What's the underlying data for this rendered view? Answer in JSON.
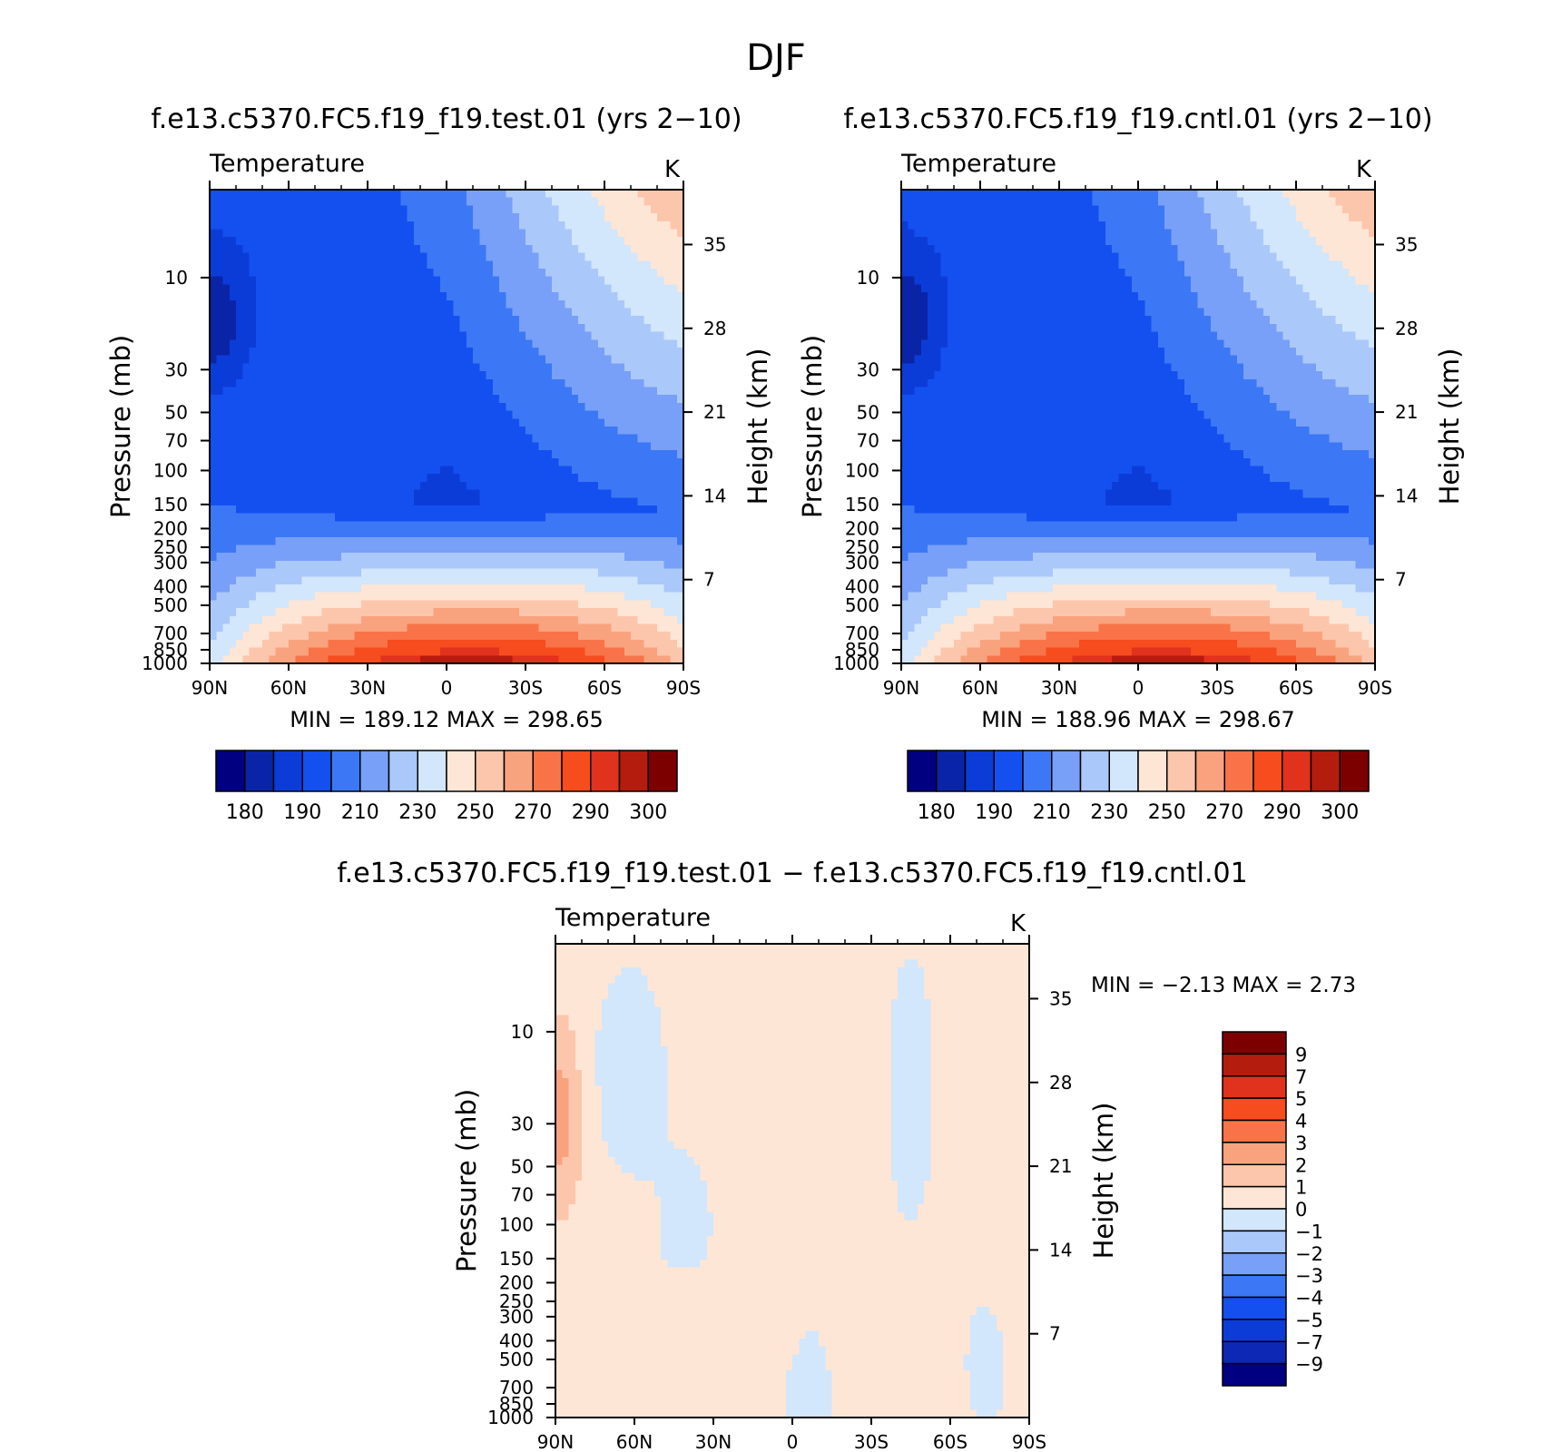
{
  "season_title": "DJF",
  "colors": {
    "abs_palette": [
      "#000080",
      "#0a24a8",
      "#0c3cd8",
      "#1450f0",
      "#3c78f5",
      "#78a0f8",
      "#aac8fa",
      "#d2e6fc",
      "#fde6d6",
      "#fcc6ad",
      "#f9a37e",
      "#f87448",
      "#f64c1e",
      "#e0321c",
      "#b41c0e",
      "#7d0000"
    ],
    "diff_palette": [
      "#000080",
      "#0c28b4",
      "#0c3cd8",
      "#1450f0",
      "#3c78f5",
      "#78a0f8",
      "#aac8fa",
      "#d2e6fc",
      "#fde6d6",
      "#fcc6ad",
      "#f9a37e",
      "#f87448",
      "#f64c1e",
      "#e0321c",
      "#b41c0e",
      "#7d0000"
    ]
  },
  "panels": [
    {
      "case_title": "f.e13.c5370.FC5.f19_f19.test.01 (yrs 2−10)",
      "field": "Temperature",
      "units": "K",
      "ylabel": "Pressure (mb)",
      "ylabel_right": "Height (km)",
      "stats": "MIN =  189.12   MAX =  298.65"
    },
    {
      "case_title": "f.e13.c5370.FC5.f19_f19.cntl.01 (yrs 2−10)",
      "field": "Temperature",
      "units": "K",
      "ylabel": "Pressure (mb)",
      "ylabel_right": "Height (km)",
      "stats": "MIN =  188.96   MAX =  298.67"
    },
    {
      "case_title": "f.e13.c5370.FC5.f19_f19.test.01 − f.e13.c5370.FC5.f19_f19.cntl.01",
      "field": "Temperature",
      "units": "K",
      "ylabel": "Pressure (mb)",
      "ylabel_right": "Height (km)",
      "stats": "MIN =    −2.13    MAX =      2.73"
    }
  ],
  "chart_data": [
    {
      "type": "heatmap",
      "title": "f.e13.c5370.FC5.f19_f19.test.01 (yrs 2−10)",
      "x_ticks": [
        "90N",
        "60N",
        "30N",
        "0",
        "30S",
        "60S",
        "90S"
      ],
      "x_values": [
        90,
        60,
        30,
        0,
        -30,
        -60,
        -90
      ],
      "y_ticks": [
        "10",
        "30",
        "50",
        "70",
        "100",
        "150",
        "200",
        "250",
        "300",
        "400",
        "500",
        "700",
        "850",
        "1000"
      ],
      "y_values": [
        10,
        30,
        50,
        70,
        100,
        150,
        200,
        250,
        300,
        400,
        500,
        700,
        850,
        1000
      ],
      "y_scale": "log",
      "y_range": [
        3.5,
        1000
      ],
      "height_ticks": [
        "7",
        "14",
        "21",
        "28",
        "35"
      ],
      "height_values": [
        7,
        14,
        21,
        28,
        35
      ],
      "colorbar_labels": [
        "180",
        "190",
        "210",
        "230",
        "250",
        "270",
        "290",
        "300"
      ],
      "levels": [
        180,
        185,
        190,
        200,
        210,
        220,
        230,
        240,
        250,
        260,
        270,
        280,
        290,
        295,
        300
      ],
      "min": 189.12,
      "max": 298.65
    },
    {
      "type": "heatmap",
      "title": "f.e13.c5370.FC5.f19_f19.cntl.01 (yrs 2−10)",
      "x_ticks": [
        "90N",
        "60N",
        "30N",
        "0",
        "30S",
        "60S",
        "90S"
      ],
      "x_values": [
        90,
        60,
        30,
        0,
        -30,
        -60,
        -90
      ],
      "y_ticks": [
        "10",
        "30",
        "50",
        "70",
        "100",
        "150",
        "200",
        "250",
        "300",
        "400",
        "500",
        "700",
        "850",
        "1000"
      ],
      "y_values": [
        10,
        30,
        50,
        70,
        100,
        150,
        200,
        250,
        300,
        400,
        500,
        700,
        850,
        1000
      ],
      "y_scale": "log",
      "y_range": [
        3.5,
        1000
      ],
      "height_ticks": [
        "7",
        "14",
        "21",
        "28",
        "35"
      ],
      "height_values": [
        7,
        14,
        21,
        28,
        35
      ],
      "colorbar_labels": [
        "180",
        "190",
        "210",
        "230",
        "250",
        "270",
        "290",
        "300"
      ],
      "levels": [
        180,
        185,
        190,
        200,
        210,
        220,
        230,
        240,
        250,
        260,
        270,
        280,
        290,
        295,
        300
      ],
      "min": 188.96,
      "max": 298.67
    },
    {
      "type": "heatmap",
      "title": "f.e13.c5370.FC5.f19_f19.test.01 − f.e13.c5370.FC5.f19_f19.cntl.01",
      "x_ticks": [
        "90N",
        "60N",
        "30N",
        "0",
        "30S",
        "60S",
        "90S"
      ],
      "x_values": [
        90,
        60,
        30,
        0,
        -30,
        -60,
        -90
      ],
      "y_ticks": [
        "10",
        "30",
        "50",
        "70",
        "100",
        "150",
        "200",
        "250",
        "300",
        "400",
        "500",
        "700",
        "850",
        "1000"
      ],
      "y_values": [
        10,
        30,
        50,
        70,
        100,
        150,
        200,
        250,
        300,
        400,
        500,
        700,
        850,
        1000
      ],
      "y_scale": "log",
      "y_range": [
        3.5,
        1000
      ],
      "height_ticks": [
        "7",
        "14",
        "21",
        "28",
        "35"
      ],
      "height_values": [
        7,
        14,
        21,
        28,
        35
      ],
      "colorbar_labels": [
        "9",
        "7",
        "5",
        "4",
        "3",
        "2",
        "1",
        "0",
        "−1",
        "−2",
        "−3",
        "−4",
        "−5",
        "−7",
        "−9"
      ],
      "levels": [
        -9,
        -7,
        -5,
        -4,
        -3,
        -2,
        -1,
        0,
        1,
        2,
        3,
        4,
        5,
        7,
        9
      ],
      "min": -2.13,
      "max": 2.73
    }
  ]
}
